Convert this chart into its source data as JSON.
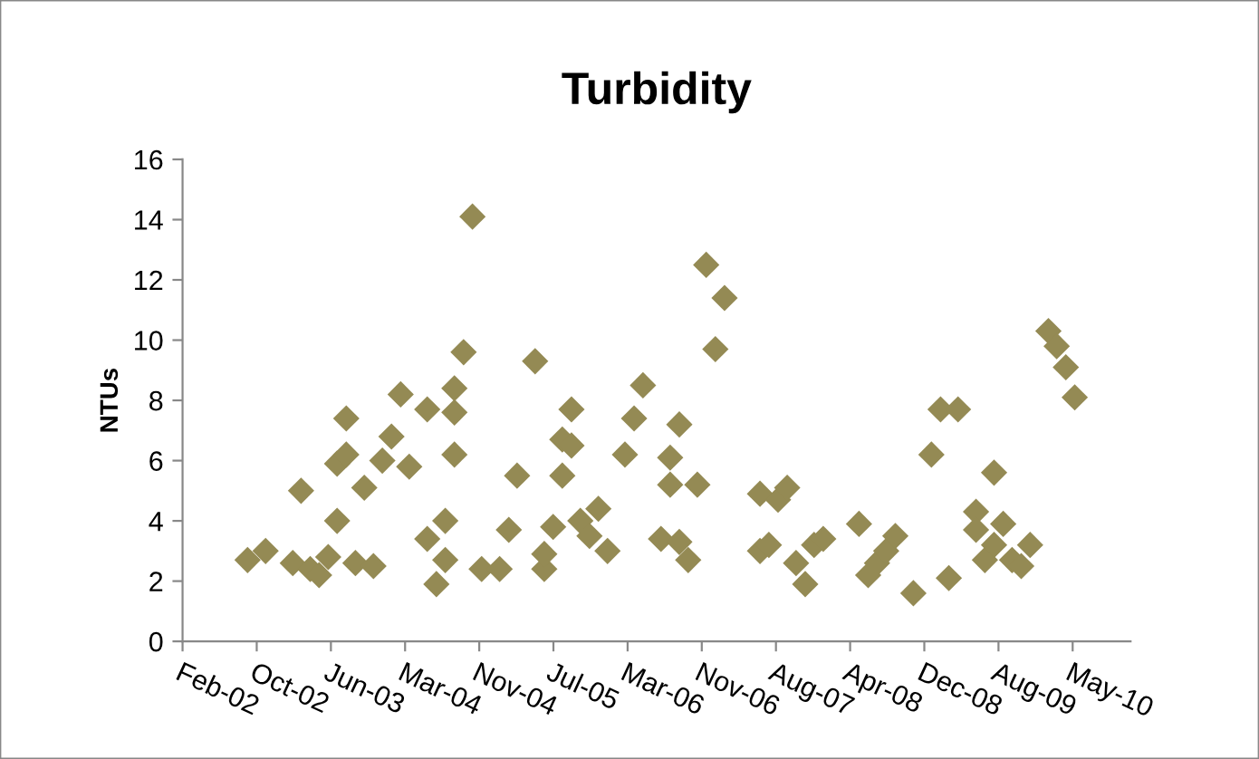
{
  "chart_data": {
    "type": "scatter",
    "title": "Turbidity",
    "ylabel": "NTUs",
    "x": [
      "2002-09-15",
      "2002-11-15",
      "2003-02-15",
      "2003-03-15",
      "2003-04-15",
      "2003-05-15",
      "2003-06-15",
      "2003-07-15",
      "2003-07-15",
      "2003-08-15",
      "2003-08-15",
      "2003-09-15",
      "2003-10-15",
      "2003-11-15",
      "2003-12-15",
      "2004-01-15",
      "2004-02-15",
      "2004-03-15",
      "2004-05-15",
      "2004-05-15",
      "2004-06-15",
      "2004-07-15",
      "2004-07-15",
      "2004-08-15",
      "2004-08-15",
      "2004-08-15",
      "2004-09-15",
      "2004-10-15",
      "2004-11-15",
      "2005-01-15",
      "2005-02-15",
      "2005-03-15",
      "2005-05-15",
      "2005-06-15",
      "2005-06-15",
      "2005-07-15",
      "2005-08-15",
      "2005-08-15",
      "2005-09-15",
      "2005-09-15",
      "2005-10-15",
      "2005-11-15",
      "2005-12-15",
      "2006-01-15",
      "2006-03-15",
      "2006-04-15",
      "2006-05-15",
      "2006-07-15",
      "2006-08-15",
      "2006-08-15",
      "2006-09-15",
      "2006-09-15",
      "2006-10-15",
      "2006-11-15",
      "2006-12-15",
      "2007-01-15",
      "2007-02-15",
      "2007-06-15",
      "2007-06-15",
      "2007-07-15",
      "2007-08-15",
      "2007-09-15",
      "2007-10-15",
      "2007-11-15",
      "2007-12-15",
      "2008-01-15",
      "2008-05-15",
      "2008-06-15",
      "2008-07-15",
      "2008-08-15",
      "2008-09-15",
      "2008-11-15",
      "2009-01-15",
      "2009-02-15",
      "2009-03-15",
      "2009-04-15",
      "2009-06-15",
      "2009-06-15",
      "2009-07-15",
      "2009-08-15",
      "2009-08-15",
      "2009-09-15",
      "2009-10-15",
      "2009-11-15",
      "2009-12-15",
      "2010-02-15",
      "2010-03-15",
      "2010-04-15",
      "2010-05-15"
    ],
    "values": [
      2.7,
      3.0,
      2.6,
      5.0,
      2.4,
      2.2,
      2.8,
      4.0,
      5.9,
      7.4,
      6.2,
      2.6,
      5.1,
      2.5,
      6.0,
      6.8,
      8.2,
      5.8,
      7.7,
      3.4,
      1.9,
      2.7,
      4.0,
      6.2,
      7.6,
      8.4,
      9.6,
      14.1,
      2.4,
      2.4,
      3.7,
      5.5,
      9.3,
      2.4,
      2.9,
      3.8,
      5.5,
      6.7,
      7.7,
      6.5,
      4.0,
      3.5,
      4.4,
      3.0,
      6.2,
      7.4,
      8.5,
      3.4,
      6.1,
      5.2,
      7.2,
      3.3,
      2.7,
      5.2,
      12.5,
      9.7,
      11.4,
      4.9,
      3.0,
      3.2,
      4.7,
      5.1,
      2.6,
      1.9,
      3.2,
      3.4,
      3.9,
      2.2,
      2.6,
      3.0,
      3.5,
      1.6,
      6.2,
      7.7,
      2.1,
      7.7,
      4.3,
      3.7,
      2.7,
      5.6,
      3.2,
      3.9,
      2.7,
      2.5,
      3.2,
      10.3,
      9.8,
      9.1,
      8.1
    ],
    "color": "#948a54",
    "marker": "diamond",
    "grid": false,
    "legend": false,
    "xlim": [
      "2002-02-07",
      "2010-11-20"
    ],
    "xticks": [
      {
        "value": "2002-02-07",
        "label": "Feb-02"
      },
      {
        "value": "2002-10-16",
        "label": "Oct-02"
      },
      {
        "value": "2003-06-24",
        "label": "Jun-03"
      },
      {
        "value": "2004-03-01",
        "label": "Mar-04"
      },
      {
        "value": "2004-11-07",
        "label": "Nov-04"
      },
      {
        "value": "2005-07-16",
        "label": "Jul-05"
      },
      {
        "value": "2006-03-24",
        "label": "Mar-06"
      },
      {
        "value": "2006-11-30",
        "label": "Nov-06"
      },
      {
        "value": "2007-08-08",
        "label": "Aug-07"
      },
      {
        "value": "2008-04-15",
        "label": "Apr-08"
      },
      {
        "value": "2008-12-22",
        "label": "Dec-08"
      },
      {
        "value": "2009-08-30",
        "label": "Aug-09"
      },
      {
        "value": "2010-05-08",
        "label": "May-10"
      }
    ],
    "ylim": [
      0,
      16
    ],
    "yticks": [
      0,
      2,
      4,
      6,
      8,
      10,
      12,
      14,
      16
    ]
  }
}
